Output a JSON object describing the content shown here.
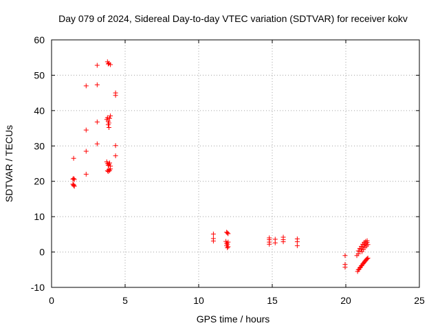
{
  "chart_data": {
    "type": "scatter",
    "title": "Day 079 of 2024, Sidereal Day-to-day VTEC variation (SDTVAR) for receiver kokv",
    "xlabel": "GPS time / hours",
    "ylabel": "SDTVAR / TECUs",
    "xlim": [
      0,
      25
    ],
    "ylim": [
      -10,
      60
    ],
    "xticks": [
      0,
      5,
      10,
      15,
      20,
      25
    ],
    "yticks": [
      -10,
      0,
      10,
      20,
      30,
      40,
      50,
      60
    ],
    "grid": true,
    "marker": "+",
    "color": "#ff0000",
    "series": [
      {
        "name": "SDTVAR",
        "points": [
          [
            1.5,
            26.5
          ],
          [
            1.5,
            20.8
          ],
          [
            1.55,
            20.5
          ],
          [
            1.45,
            20.6
          ],
          [
            1.5,
            19.0
          ],
          [
            1.55,
            18.6
          ],
          [
            1.45,
            19.2
          ],
          [
            1.5,
            18.8
          ],
          [
            2.35,
            47.0
          ],
          [
            2.35,
            34.5
          ],
          [
            2.35,
            28.5
          ],
          [
            2.35,
            22.0
          ],
          [
            3.1,
            52.8
          ],
          [
            3.1,
            47.3
          ],
          [
            3.1,
            36.8
          ],
          [
            3.1,
            30.6
          ],
          [
            3.8,
            53.8
          ],
          [
            3.9,
            53.4
          ],
          [
            4.0,
            53.0
          ],
          [
            3.85,
            53.2
          ],
          [
            3.75,
            37.5
          ],
          [
            3.8,
            38.0
          ],
          [
            3.85,
            37.0
          ],
          [
            3.9,
            36.5
          ],
          [
            3.95,
            37.8
          ],
          [
            4.0,
            38.5
          ],
          [
            3.85,
            36.0
          ],
          [
            3.9,
            35.2
          ],
          [
            3.75,
            25.5
          ],
          [
            3.8,
            25.0
          ],
          [
            3.85,
            24.5
          ],
          [
            3.9,
            24.8
          ],
          [
            3.95,
            25.2
          ],
          [
            4.0,
            24.3
          ],
          [
            3.8,
            23.0
          ],
          [
            3.85,
            22.8
          ],
          [
            3.9,
            23.3
          ],
          [
            3.95,
            23.0
          ],
          [
            4.0,
            23.5
          ],
          [
            4.35,
            45.0
          ],
          [
            4.35,
            44.3
          ],
          [
            4.35,
            30.1
          ],
          [
            4.35,
            27.2
          ],
          [
            11.0,
            5.1
          ],
          [
            11.0,
            3.8
          ],
          [
            11.0,
            3.1
          ],
          [
            11.9,
            5.6
          ],
          [
            12.0,
            5.2
          ],
          [
            11.95,
            5.4
          ],
          [
            11.85,
            3.0
          ],
          [
            11.9,
            2.5
          ],
          [
            11.95,
            2.2
          ],
          [
            12.0,
            2.8
          ],
          [
            11.9,
            1.8
          ],
          [
            11.95,
            1.2
          ],
          [
            12.0,
            1.5
          ],
          [
            14.8,
            4.0
          ],
          [
            14.8,
            3.5
          ],
          [
            14.8,
            2.8
          ],
          [
            14.8,
            2.2
          ],
          [
            15.2,
            3.6
          ],
          [
            15.2,
            2.6
          ],
          [
            15.75,
            4.2
          ],
          [
            15.75,
            3.5
          ],
          [
            15.75,
            2.9
          ],
          [
            16.7,
            3.7
          ],
          [
            16.7,
            2.9
          ],
          [
            16.7,
            1.8
          ],
          [
            19.95,
            -1.0
          ],
          [
            19.95,
            -3.5
          ],
          [
            19.95,
            -4.3
          ],
          [
            20.75,
            -1.0
          ],
          [
            20.85,
            -0.5
          ],
          [
            20.95,
            0.2
          ],
          [
            21.05,
            0.8
          ],
          [
            21.15,
            1.4
          ],
          [
            21.25,
            2.0
          ],
          [
            21.35,
            2.4
          ],
          [
            21.45,
            2.7
          ],
          [
            20.85,
            0.3
          ],
          [
            20.95,
            1.0
          ],
          [
            21.05,
            1.6
          ],
          [
            21.15,
            2.2
          ],
          [
            21.25,
            2.7
          ],
          [
            21.35,
            3.0
          ],
          [
            21.45,
            3.2
          ],
          [
            21.1,
            0.1
          ],
          [
            21.2,
            0.7
          ],
          [
            21.3,
            1.3
          ],
          [
            21.4,
            1.7
          ],
          [
            21.5,
            2.1
          ],
          [
            20.8,
            -5.5
          ],
          [
            20.9,
            -4.9
          ],
          [
            21.0,
            -4.3
          ],
          [
            21.1,
            -3.8
          ],
          [
            21.2,
            -3.2
          ],
          [
            21.3,
            -2.6
          ],
          [
            21.4,
            -2.1
          ],
          [
            21.5,
            -1.7
          ],
          [
            20.85,
            -5.0
          ],
          [
            20.95,
            -4.5
          ],
          [
            21.05,
            -3.9
          ],
          [
            21.15,
            -3.4
          ],
          [
            21.25,
            -2.9
          ],
          [
            21.35,
            -2.4
          ],
          [
            21.45,
            -1.9
          ]
        ]
      }
    ]
  }
}
